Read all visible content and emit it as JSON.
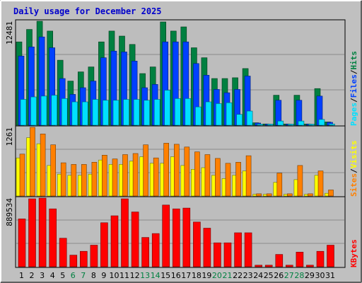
{
  "title": "Daily usage for December 2025",
  "colors": {
    "background": "#C0C0C0",
    "plot": "#BDBDBD",
    "title": "#0000CC",
    "hits": "#008040",
    "files": "#0040FF",
    "pages": "#00E0FF",
    "visits": "#FFFF00",
    "sites": "#FF8000",
    "kbytes": "#FF0000",
    "day_normal": "#000000",
    "day_weekend": "#008040"
  },
  "chart_data": [
    {
      "type": "bar",
      "categories": [
        "1",
        "2",
        "3",
        "4",
        "5",
        "6",
        "7",
        "8",
        "9",
        "10",
        "11",
        "12",
        "13",
        "14",
        "15",
        "16",
        "17",
        "18",
        "19",
        "20",
        "21",
        "22",
        "23",
        "24",
        "25",
        "26",
        "27",
        "28",
        "29",
        "30",
        "31"
      ],
      "ymax_label": "12481",
      "ylim": [
        0,
        12481
      ],
      "legend": [
        {
          "label": "Pages",
          "color": "#00E0FF"
        },
        {
          "label": "Files",
          "color": "#0040FF"
        },
        {
          "label": "Hits",
          "color": "#008040"
        }
      ],
      "series": [
        {
          "name": "Hits",
          "values": [
            10000,
            11500,
            12481,
            11300,
            7800,
            5300,
            6400,
            7000,
            10000,
            11300,
            10700,
            9700,
            6200,
            7000,
            12400,
            11300,
            11800,
            9300,
            8100,
            5600,
            5600,
            5700,
            6800,
            300,
            150,
            3600,
            150,
            3600,
            150,
            4400,
            400
          ]
        },
        {
          "name": "Files",
          "values": [
            8300,
            9400,
            10600,
            9300,
            5600,
            3700,
            4500,
            5300,
            8100,
            8900,
            8800,
            7700,
            4500,
            4900,
            10000,
            10000,
            10000,
            7400,
            6000,
            4300,
            3900,
            4300,
            5900,
            260,
            100,
            3000,
            100,
            3000,
            100,
            3500,
            350
          ]
        },
        {
          "name": "Pages",
          "values": [
            3100,
            3400,
            3500,
            3600,
            3200,
            2800,
            2800,
            3100,
            3000,
            3000,
            3100,
            3100,
            3000,
            3100,
            4200,
            3200,
            3200,
            2200,
            2800,
            2600,
            2700,
            1300,
            1700,
            100,
            60,
            500,
            60,
            500,
            60,
            700,
            150
          ]
        }
      ]
    },
    {
      "type": "bar",
      "categories": [
        "1",
        "2",
        "3",
        "4",
        "5",
        "6",
        "7",
        "8",
        "9",
        "10",
        "11",
        "12",
        "13",
        "14",
        "15",
        "16",
        "17",
        "18",
        "19",
        "20",
        "21",
        "22",
        "23",
        "24",
        "25",
        "26",
        "27",
        "28",
        "29",
        "30",
        "31"
      ],
      "ymax_label": "1261",
      "ylim": [
        0,
        1261
      ],
      "legend": [
        {
          "label": "Sites",
          "color": "#FF8000"
        },
        {
          "label": "Visits",
          "color": "#FFFF00"
        }
      ],
      "series": [
        {
          "name": "Visits",
          "values": [
            700,
            1070,
            960,
            560,
            400,
            380,
            380,
            400,
            660,
            580,
            580,
            640,
            720,
            600,
            600,
            720,
            560,
            490,
            520,
            380,
            320,
            380,
            460,
            30,
            30,
            250,
            30,
            300,
            30,
            380,
            50
          ]
        },
        {
          "name": "Sites",
          "values": [
            770,
            1261,
            1140,
            940,
            610,
            580,
            580,
            620,
            750,
            680,
            760,
            780,
            940,
            700,
            970,
            950,
            900,
            810,
            760,
            690,
            600,
            620,
            740,
            40,
            40,
            420,
            40,
            560,
            40,
            460,
            110
          ]
        }
      ]
    },
    {
      "type": "bar",
      "categories": [
        "1",
        "2",
        "3",
        "4",
        "5",
        "6",
        "7",
        "8",
        "9",
        "10",
        "11",
        "12",
        "13",
        "14",
        "15",
        "16",
        "17",
        "18",
        "19",
        "20",
        "21",
        "22",
        "23",
        "24",
        "25",
        "26",
        "27",
        "28",
        "29",
        "30",
        "31"
      ],
      "ymax_label": "889534",
      "ylim": [
        0,
        889534
      ],
      "legend": [
        {
          "label": "KBytes",
          "color": "#FF0000"
        }
      ],
      "series": [
        {
          "name": "KBytes",
          "values": [
            620000,
            880000,
            889534,
            750000,
            370000,
            150000,
            200000,
            280000,
            570000,
            660000,
            880000,
            710000,
            380000,
            430000,
            800000,
            750000,
            760000,
            580000,
            500000,
            310000,
            310000,
            440000,
            440000,
            20000,
            20000,
            160000,
            20000,
            190000,
            20000,
            200000,
            280000
          ]
        }
      ]
    }
  ],
  "day_labels": [
    "1",
    "2",
    "3",
    "4",
    "5",
    "6",
    "7",
    "8",
    "9",
    "10",
    "11",
    "12",
    "13",
    "14",
    "15",
    "16",
    "17",
    "18",
    "19",
    "20",
    "21",
    "22",
    "23",
    "24",
    "25",
    "26",
    "27",
    "28",
    "29",
    "30",
    "31"
  ],
  "weekend_days": [
    "6",
    "7",
    "13",
    "14",
    "20",
    "21",
    "27",
    "28"
  ]
}
